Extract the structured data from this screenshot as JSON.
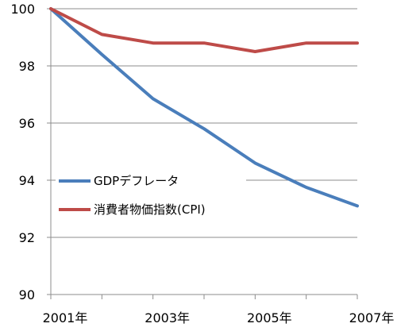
{
  "chart_data": {
    "type": "line",
    "title": "",
    "xlabel": "",
    "ylabel": "",
    "x": [
      2001,
      2002,
      2003,
      2004,
      2005,
      2006,
      2007
    ],
    "xlim": [
      2001,
      2007
    ],
    "ylim": [
      90,
      100
    ],
    "y_ticks": [
      90,
      92,
      94,
      96,
      98,
      100
    ],
    "x_ticks": [
      {
        "value": 2001,
        "label": "2001年"
      },
      {
        "value": 2003,
        "label": "2003年"
      },
      {
        "value": 2005,
        "label": "2005年"
      },
      {
        "value": 2007,
        "label": "2007年"
      }
    ],
    "grid": {
      "horizontal": true,
      "vertical": false
    },
    "legend_position": "left-middle",
    "series": [
      {
        "name": "GDPデフレータ",
        "color": "#4A7EBB",
        "values": [
          100,
          98.4,
          96.85,
          95.8,
          94.6,
          93.75,
          93.1
        ]
      },
      {
        "name": "消費者物価指数(CPI)",
        "color": "#BE4B48",
        "values": [
          100,
          99.1,
          98.8,
          98.8,
          98.5,
          98.8,
          98.8
        ]
      }
    ]
  }
}
